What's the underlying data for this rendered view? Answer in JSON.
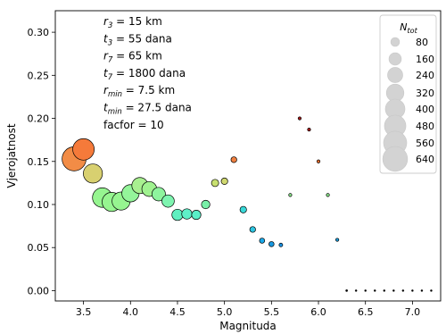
{
  "chart_data": {
    "type": "scatter",
    "xlabel": "Magnituda",
    "ylabel": "Vjerojatnost",
    "xlim": [
      3.2,
      7.3
    ],
    "ylim": [
      -0.012,
      0.325
    ],
    "xticks": [
      "3.5",
      "4.0",
      "4.5",
      "5.0",
      "5.5",
      "6.0",
      "6.5",
      "7.0"
    ],
    "yticks": [
      "0.00",
      "0.05",
      "0.10",
      "0.15",
      "0.20",
      "0.25",
      "0.30"
    ],
    "grid": false,
    "annotations": [
      {
        "sym": "r",
        "sub": "3",
        "rest": " = 15 km"
      },
      {
        "sym": "t",
        "sub": "3",
        "rest": " = 55 dana"
      },
      {
        "sym": "r",
        "sub": "7",
        "rest": " = 65 km"
      },
      {
        "sym": "t",
        "sub": "7",
        "rest": " = 1800 dana"
      },
      {
        "sym": "r",
        "sub": "min",
        "rest": " = 7.5 km"
      },
      {
        "sym": "t",
        "sub": "min",
        "rest": " = 27.5 dana"
      },
      {
        "sym": "",
        "sub": "",
        "rest": "facfor = 10"
      }
    ],
    "legend": {
      "title_sym": "N",
      "title_sub": "tot",
      "placement": "top-right",
      "color": "#d3d3d3",
      "entries": [
        "80",
        "160",
        "240",
        "320",
        "400",
        "480",
        "560",
        "640"
      ]
    },
    "points": [
      {
        "x": 3.4,
        "y": 0.153,
        "n": 600,
        "color": "#f28c46"
      },
      {
        "x": 3.5,
        "y": 0.164,
        "n": 480,
        "color": "#f57a3a"
      },
      {
        "x": 3.6,
        "y": 0.136,
        "n": 380,
        "color": "#d8d070"
      },
      {
        "x": 3.7,
        "y": 0.108,
        "n": 400,
        "color": "#96f590"
      },
      {
        "x": 3.8,
        "y": 0.103,
        "n": 380,
        "color": "#96f590"
      },
      {
        "x": 3.9,
        "y": 0.104,
        "n": 340,
        "color": "#96f590"
      },
      {
        "x": 4.0,
        "y": 0.113,
        "n": 310,
        "color": "#94f59a"
      },
      {
        "x": 4.1,
        "y": 0.122,
        "n": 270,
        "color": "#a8f090"
      },
      {
        "x": 4.2,
        "y": 0.118,
        "n": 230,
        "color": "#a0f290"
      },
      {
        "x": 4.3,
        "y": 0.112,
        "n": 190,
        "color": "#8ef49e"
      },
      {
        "x": 4.4,
        "y": 0.104,
        "n": 160,
        "color": "#7ef4b0"
      },
      {
        "x": 4.5,
        "y": 0.088,
        "n": 130,
        "color": "#5ff0c0"
      },
      {
        "x": 4.6,
        "y": 0.089,
        "n": 110,
        "color": "#5ff0c8"
      },
      {
        "x": 4.7,
        "y": 0.088,
        "n": 90,
        "color": "#5aeec8"
      },
      {
        "x": 4.8,
        "y": 0.1,
        "n": 75,
        "color": "#78f0a8"
      },
      {
        "x": 4.9,
        "y": 0.125,
        "n": 55,
        "color": "#c8e070"
      },
      {
        "x": 5.0,
        "y": 0.127,
        "n": 45,
        "color": "#d0d870"
      },
      {
        "x": 5.1,
        "y": 0.152,
        "n": 35,
        "color": "#f08040"
      },
      {
        "x": 5.2,
        "y": 0.094,
        "n": 45,
        "color": "#38d8d8"
      },
      {
        "x": 5.3,
        "y": 0.071,
        "n": 35,
        "color": "#2ec4e0"
      },
      {
        "x": 5.4,
        "y": 0.058,
        "n": 28,
        "color": "#1aa8e8"
      },
      {
        "x": 5.5,
        "y": 0.054,
        "n": 28,
        "color": "#1898e0"
      },
      {
        "x": 5.6,
        "y": 0.053,
        "n": 14,
        "color": "#1a90e0"
      },
      {
        "x": 5.7,
        "y": 0.111,
        "n": 10,
        "color": "#90f090"
      },
      {
        "x": 5.8,
        "y": 0.2,
        "n": 10,
        "color": "#a01818"
      },
      {
        "x": 5.9,
        "y": 0.187,
        "n": 10,
        "color": "#a81818"
      },
      {
        "x": 6.0,
        "y": 0.15,
        "n": 10,
        "color": "#f07030"
      },
      {
        "x": 6.1,
        "y": 0.111,
        "n": 10,
        "color": "#90f090"
      },
      {
        "x": 6.2,
        "y": 0.059,
        "n": 10,
        "color": "#1aa0e0"
      },
      {
        "x": 6.3,
        "y": 0.0,
        "n": 5,
        "color": "#000000"
      },
      {
        "x": 6.4,
        "y": 0.0,
        "n": 2,
        "color": "#000000"
      },
      {
        "x": 6.5,
        "y": 0.0,
        "n": 2,
        "color": "#000000"
      },
      {
        "x": 6.6,
        "y": 0.0,
        "n": 3,
        "color": "#000000"
      },
      {
        "x": 6.7,
        "y": 0.0,
        "n": 3,
        "color": "#000000"
      },
      {
        "x": 6.8,
        "y": 0.0,
        "n": 3,
        "color": "#000000"
      },
      {
        "x": 6.9,
        "y": 0.0,
        "n": 3,
        "color": "#000000"
      },
      {
        "x": 7.0,
        "y": 0.0,
        "n": 2,
        "color": "#000000"
      },
      {
        "x": 7.1,
        "y": 0.0,
        "n": 2,
        "color": "#000000"
      },
      {
        "x": 7.2,
        "y": 0.0,
        "n": 2,
        "color": "#000000"
      }
    ]
  }
}
